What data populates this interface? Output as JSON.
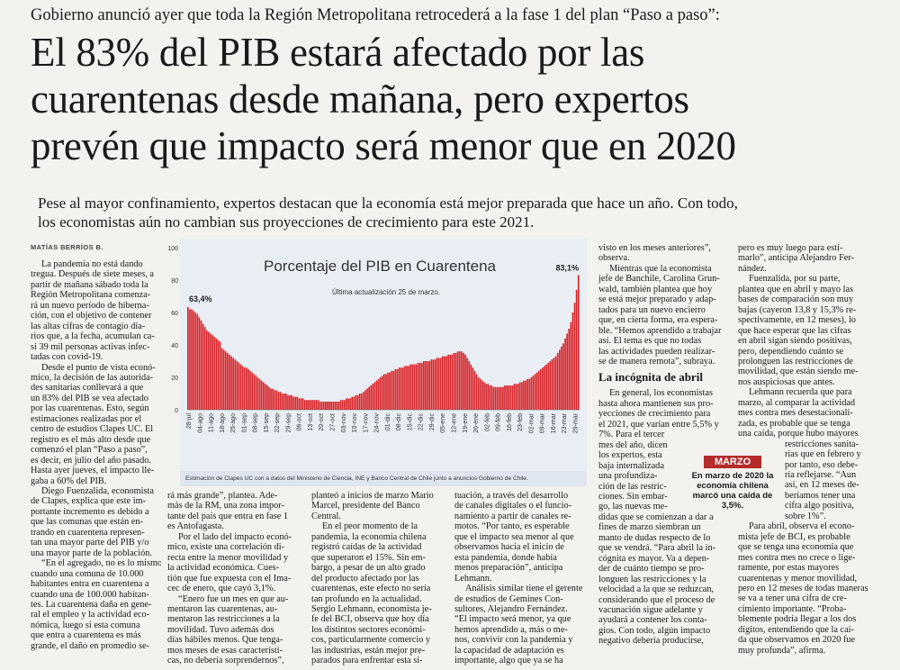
{
  "kicker": "Gobierno anunció ayer que toda la Región Metropolitana retrocederá a la fase 1 del plan “Paso a paso”:",
  "headline": [
    "El 83% del PIB estará afectado por las",
    "cuarentenas desde mañana, pero expertos",
    "prevén que impacto será menor que en 2020"
  ],
  "lede": [
    "Pese al mayor confinamiento, expertos destacan que la economía está mejor preparada que hace un año. Con todo,",
    "los economistas aún no cambian sus proyecciones de crecimiento para este 2021."
  ],
  "byline": "MATÍAS BERRÍOS B.",
  "col1": [
    "La pandemia no está dando",
    "tregua. Después de siete meses, a",
    "partir de mañana sábado toda la",
    "Región Metropolitana comenza-",
    "rá un nuevo período de hiberna-",
    "ción, con el objetivo de contener",
    "las altas cifras de contagio dia-",
    "rios que, a la fecha, acumulan ca-",
    "si 39 mil personas activas infec-",
    "tadas con covid-19.",
    "Desde el punto de vista econó-",
    "mico, la decisión de las autorida-",
    "des sanitarias conllevará a que",
    "un 83% del PIB se vea afectado",
    "por las cuarentenas. Esto, según",
    "estimaciones realizadas por el",
    "centro de estudios Clapes UC. El",
    "registro es el más alto desde que",
    "comenzó el plan “Paso a paso”,",
    "es decir, en julio del año pasado.",
    "Hasta ayer jueves, el impacto lle-",
    "gaba a 60% del PIB.",
    "Diego Fuenzalida, economista",
    "de Clapes, explica que este im-",
    "portante incremento es debido a",
    "que las comunas que están en-",
    "trando en cuarentena represen-",
    "tan una mayor parte del PIB y/o",
    "una mayor parte de la población.",
    "“En el agregado, no es lo mismo",
    "cuando una comuna de 10.000",
    "habitantes entra en cuarentena a",
    "cuando una de 100.000 habitan-",
    "tes. La cuarentena daña en gene-",
    "ral el empleo y la actividad eco-",
    "nómica, luego si esta comuna",
    "que entra a cuarentena es más",
    "grande, el daño en promedio se-"
  ],
  "col2": [
    "rá más grande”, plantea. Ade-",
    "más de la RM, una zona impor-",
    "tante del país que entra en fase 1",
    "es Antofagasta.",
    "Por el lado del impacto econó-",
    "mico, existe una correlación di-",
    "recta entre la menor movilidad y",
    "la actividad económica. Cues-",
    "tión que fue expuesta con el Ima-",
    "cec de enero, que cayó 3,1%.",
    "“Enero fue un mes en que au-",
    "mentaron las cuarentenas, au-",
    "mentaron las restricciones a la",
    "movilidad. Tuvo además dos",
    "días hábiles menos. Que tenga-",
    "mos meses de esas característi-",
    "cas, no debería sorprendernos”,"
  ],
  "col3": [
    "planteó a inicios de marzo Mario",
    "Marcel, presidente del Banco",
    "Central.",
    "En el peor momento de la",
    "pandemia, la economía chilena",
    "registró caídas de la actividad",
    "que superaron el 15%. Sin em-",
    "bargo, a pesar de un alto grado",
    "del producto afectado por las",
    "cuarentenas, este efecto no sería",
    "tan profundo en la actualidad.",
    "Sergio Lehmann, economista je-",
    "fe del BCI, observa que hoy día",
    "los distintos sectores económi-",
    "cos, particularmente comercio y",
    "las industrias, están mejor pre-",
    "parados para enfrentar esta si-"
  ],
  "col4": [
    "tuación, a través del desarrollo",
    "de canales digitales o el funcio-",
    "namiento a partir de canales re-",
    "motos. “Por tanto, es esperable",
    "que el impacto sea menor al que",
    "observamos hacia el inicio de",
    "esta pandemia, donde había",
    "menos preparación”, anticipa",
    "Lehmann.",
    "Análisis similar tiene el gerente",
    "de estudios de Gemines Con-",
    "sultores, Alejandro Fernández.",
    "“El impacto será menor, ya que",
    "hemos aprendido a, más o me-",
    "nos, convivir con la pandemia y",
    "la capacidad de adaptación es",
    "importante, algo que ya se ha"
  ],
  "col5_top": [
    "visto en los meses anteriores”,",
    "observa.",
    "Mientras que la economista",
    "jefe de Banchile, Carolina Grun-",
    "wald, también plantea que hoy",
    "se está mejor preparado y adap-",
    "tados para un nuevo encierro",
    "que, en cierta forma, era espera-",
    "ble. “Hemos aprendido a trabajar",
    "así. El tema es que no todas",
    "las actividades pueden realizar-",
    "se de manera remota”, subraya."
  ],
  "subhead": "La incógnita de abril",
  "col5_bottom": [
    "En general, los economistas",
    "hasta ahora mantienen sus pro-",
    "yecciones de crecimiento para",
    "el 2021, que varían entre 5,5% y",
    "7%. Para el tercer",
    "mes del año, dicen",
    "los expertos, esta",
    "baja internalizada",
    "una profundiza-",
    "ción de las restric-",
    "ciones. Sin embar-",
    "go, las nuevas me-",
    "didas que se comienzan a dar a",
    "fines de marzo siembran un",
    "manto de dudas respecto de lo",
    "que se vendrá. “Para abril la in-",
    "cógnita es mayor. Va a depen-",
    "der de cuánto tiempo se pro-",
    "longuen las restricciones y la",
    "velocidad a la que se reduzcan,",
    "considerando que el proceso de",
    "vacunación sigue adelante y",
    "ayudará a contener los conta-",
    "gios. Con todo, algún impacto",
    "negativo debería producirse,"
  ],
  "col6": [
    "pero es muy luego para esti-",
    "marlo”, anticipa Alejandro Fer-",
    "nández.",
    "Fuenzalida, por su parte,",
    "plantea que en abril y mayo las",
    "bases de comparación son muy",
    "bajas (cayeron 13,8 y 15,3% re-",
    "spectivamente, en 12 meses), lo",
    "que hace esperar que las cifras",
    "en abril sigan siendo positivas,",
    "pero, dependiendo cuánto se",
    "prolonguen las restricciones de",
    "movilidad, que están siendo me-",
    "nos auspiciosas que antes.",
    "Lehmann recuerda que para",
    "marzo, al comparar la actividad",
    "mes contra mes desestacionali-",
    "zada, es probable que se tenga",
    "una caída, porque hubo mayores",
    "restricciones sanita-",
    "rias que en febrero y",
    "por tanto, eso debe-",
    "ría reflejarse. “Aun",
    "así, en 12 meses de-",
    "beríamos tener una",
    "cifra algo positiva,",
    "sobre 1%”.",
    "Para abril, observa el econo-",
    "mista jefe de BCI, es probable",
    "que se tenga una economía que",
    "mes contra mes no crece o lige-",
    "ramente, por estas mayores",
    "cuarentenas y menor movilidad,",
    "pero en 12 meses de todas maneras",
    "se va a tener una cifra de cre-",
    "cimiento importante. “Proba-",
    "blemente podría llegar a los dos",
    "dígitos, entendiendo que la caí-",
    "da que observamos en 2020 fue",
    "muy profunda”, afirma."
  ],
  "sidebar": {
    "tag": "MARZO",
    "text": "En marzo de 2020 la economía chilena marcó una caída de 3,5%."
  },
  "chart_data": {
    "type": "bar",
    "title": "Porcentaje del PIB en Cuarentena",
    "subtitle": "Última actualización 25 de marzo.",
    "source": "Estimación de Clapes UC con a datos del Ministerio de Ciencia, INE y Banco Central de Chile junto a anuncios Gobierno de Chile.",
    "ylim": [
      0,
      100
    ],
    "yticks": [
      "0",
      "20",
      "40",
      "60",
      "80",
      "100"
    ],
    "annotations": [
      {
        "label": "63,4%",
        "value": 63.4
      },
      {
        "label": "83,1%",
        "value": 83.1
      }
    ],
    "xticks": [
      "28-jul",
      "04-ago",
      "11-ago",
      "18-ago",
      "25-ago",
      "01-sep",
      "08-sep",
      "15-sep",
      "22-sep",
      "29-sep",
      "06-oct",
      "13-oct",
      "20-oct",
      "27-oct",
      "03-nov",
      "10-nov",
      "17-nov",
      "24-nov",
      "01-dic",
      "08-dic",
      "15-dic",
      "22-dic",
      "29-dic",
      "05-ene",
      "12-ene",
      "19-ene",
      "26-ene",
      "02-feb",
      "09-feb",
      "16-feb",
      "23-feb",
      "02-mar",
      "09-mar",
      "16-mar",
      "23-mar",
      "29-mar"
    ],
    "values": [
      63.4,
      62,
      62,
      61,
      60,
      59,
      57,
      55,
      53,
      51,
      49,
      48,
      47,
      46,
      45,
      44,
      43,
      42,
      38,
      37,
      36,
      35,
      34,
      33,
      32,
      31,
      30,
      29,
      28,
      27,
      26,
      26,
      25,
      24,
      23,
      22,
      21,
      20,
      19,
      18,
      17,
      16,
      15,
      14,
      13,
      13,
      12,
      12,
      11,
      11,
      10,
      10,
      10,
      9,
      9,
      9,
      8,
      8,
      8,
      7,
      7,
      7,
      6,
      6,
      6,
      6,
      6,
      6,
      6,
      6,
      5,
      5,
      5,
      5,
      5,
      5,
      5,
      5,
      5,
      5,
      5,
      6,
      6,
      6,
      7,
      7,
      7,
      8,
      8,
      9,
      9,
      10,
      10,
      11,
      12,
      13,
      14,
      15,
      16,
      17,
      18,
      19,
      20,
      21,
      22,
      22,
      23,
      23,
      24,
      24,
      25,
      25,
      26,
      26,
      26,
      27,
      27,
      27,
      28,
      28,
      28,
      28,
      29,
      29,
      29,
      30,
      30,
      30,
      30,
      31,
      31,
      31,
      32,
      32,
      32,
      33,
      33,
      33,
      34,
      34,
      34,
      35,
      35,
      36,
      36,
      36,
      35,
      34,
      32,
      30,
      28,
      26,
      24,
      22,
      20,
      19,
      18,
      17,
      16,
      16,
      15,
      15,
      14,
      14,
      14,
      14,
      14,
      14,
      15,
      15,
      15,
      15,
      15,
      16,
      16,
      16,
      17,
      17,
      18,
      18,
      19,
      19,
      20,
      21,
      22,
      23,
      24,
      25,
      26,
      27,
      28,
      29,
      30,
      31,
      32,
      33,
      35,
      37,
      39,
      41,
      44,
      47,
      50,
      54,
      60,
      66,
      74,
      83.1
    ],
    "bar_color": "#d9262b"
  }
}
